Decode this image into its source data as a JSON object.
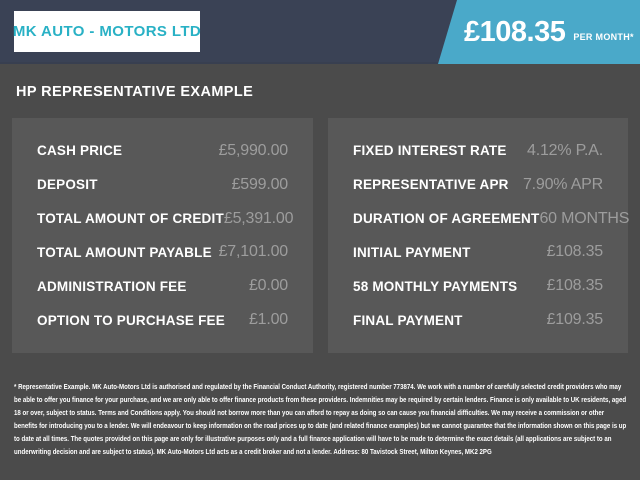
{
  "header": {
    "logo_text": "MK AUTO - MOTORS LTD",
    "monthly_price": "£108.35",
    "per_month_label": "PER MONTH*",
    "colors": {
      "header_bg": "#3A4255",
      "banner_bg": "#4AA9C9",
      "logo_text": "#29B1C5"
    }
  },
  "main": {
    "title": "HP REPRESENTATIVE EXAMPLE",
    "colors": {
      "page_bg": "#4B4B4B",
      "panel_bg": "#585858",
      "label_text": "#FFFFFF",
      "value_text": "#9D9D9D"
    }
  },
  "finance": {
    "left": [
      {
        "label": "CASH PRICE",
        "value": "£5,990.00"
      },
      {
        "label": "DEPOSIT",
        "value": "£599.00"
      },
      {
        "label": "TOTAL AMOUNT OF CREDIT",
        "value": "£5,391.00"
      },
      {
        "label": "TOTAL AMOUNT PAYABLE",
        "value": "£7,101.00"
      },
      {
        "label": "ADMINISTRATION FEE",
        "value": "£0.00"
      },
      {
        "label": "OPTION TO PURCHASE FEE",
        "value": "£1.00"
      }
    ],
    "right": [
      {
        "label": "FIXED INTEREST RATE",
        "value": "4.12% P.A."
      },
      {
        "label": "REPRESENTATIVE APR",
        "value": "7.90% APR"
      },
      {
        "label": "DURATION OF AGREEMENT",
        "value": "60 MONTHS"
      },
      {
        "label": "INITIAL PAYMENT",
        "value": "£108.35"
      },
      {
        "label": "58 MONTHLY PAYMENTS",
        "value": "£108.35"
      },
      {
        "label": "FINAL PAYMENT",
        "value": "£109.35"
      }
    ]
  },
  "disclaimer": "* Representative Example. MK Auto-Motors Ltd is authorised and regulated by the Financial Conduct Authority, registered number 773874. We work with a number of carefully selected credit providers who may be able to offer you finance for your purchase, and we are only able to offer finance products from these providers. Indemnities may be required by certain lenders. Finance is only available to UK residents, aged 18 or over, subject to status. Terms and Conditions apply. You should not borrow more than you can afford to repay as doing so can cause you financial difficulties. We may receive a commission or other benefits for introducing you to a lender. We will endeavour to keep information on the road prices up to date (and related finance examples) but we cannot guarantee that the information shown on this page is up to date at all times. The quotes provided on this page are only for illustrative purposes only and a full finance application will have to be made to determine the exact details (all applications are subject to an underwriting decision and are subject to status). MK Auto-Motors Ltd acts as a credit broker and not a lender. Address: 80 Tavistock Street, Milton Keynes, MK2 2PG"
}
